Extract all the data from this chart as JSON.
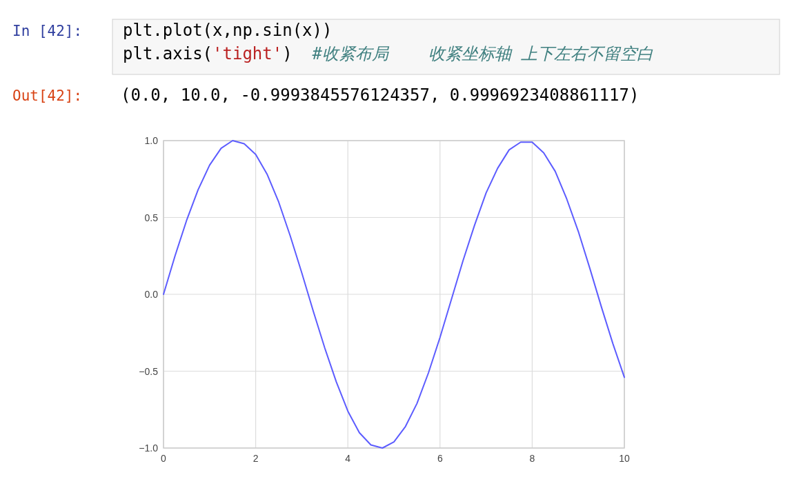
{
  "chart_data": {
    "type": "line",
    "annotations": [
      "In [42]:",
      "plt.plot(x,np.sin(x))",
      "plt.axis('tight')  #收紧布局    收紧坐标轴 上下左右不留空白",
      "Out[42]:",
      "(0.0, 10.0, -0.9993845576124357, 0.9996923408861117)"
    ],
    "x": [
      0,
      0.25,
      0.5,
      0.75,
      1,
      1.25,
      1.5,
      1.75,
      2,
      2.25,
      2.5,
      2.75,
      3,
      3.25,
      3.5,
      3.75,
      4,
      4.25,
      4.5,
      4.75,
      5,
      5.25,
      5.5,
      5.75,
      6,
      6.25,
      6.5,
      6.75,
      7,
      7.25,
      7.5,
      7.75,
      8,
      8.25,
      8.5,
      8.75,
      9,
      9.25,
      9.5,
      9.75,
      10
    ],
    "series": [
      {
        "color": "#5c5cff",
        "values": [
          0,
          0.25,
          0.48,
          0.68,
          0.84,
          0.95,
          1.0,
          0.98,
          0.91,
          0.78,
          0.6,
          0.38,
          0.14,
          -0.11,
          -0.35,
          -0.57,
          -0.76,
          -0.9,
          -0.98,
          -1.0,
          -0.96,
          -0.86,
          -0.71,
          -0.51,
          -0.28,
          -0.03,
          0.22,
          0.45,
          0.66,
          0.82,
          0.94,
          0.99,
          0.99,
          0.92,
          0.8,
          0.62,
          0.41,
          0.17,
          -0.08,
          -0.32,
          -0.54
        ]
      }
    ],
    "xlim": [
      0,
      10
    ],
    "ylim": [
      -1,
      1
    ],
    "xticks": [
      0,
      2,
      4,
      6,
      8,
      10
    ],
    "yticks": [
      {
        "value": -1,
        "label": "−1.0"
      },
      {
        "value": -0.5,
        "label": "−0.5"
      },
      {
        "value": 0,
        "label": "0.0"
      },
      {
        "value": 0.5,
        "label": "0.5"
      },
      {
        "value": 1,
        "label": "1.0"
      }
    ],
    "grid": true,
    "line_style": "solid",
    "marker": "none"
  }
}
